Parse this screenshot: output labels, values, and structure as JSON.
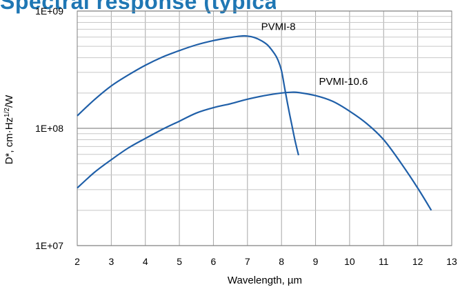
{
  "page_title": "Spectral response (typical)",
  "chart_data": {
    "type": "line",
    "xlabel": "Wavelength, µm",
    "ylabel": "D*, cm·Hz",
    "ylabel_sup": "1/2",
    "ylabel_tail": "/W",
    "xlim": [
      2,
      13
    ],
    "ylim": [
      10000000,
      1000000000
    ],
    "y_scale": "log",
    "grid": true,
    "x_ticks": [
      "2",
      "3",
      "4",
      "5",
      "6",
      "7",
      "8",
      "9",
      "10",
      "11",
      "12",
      "13"
    ],
    "y_ticks": [
      "1E+07",
      "1E+08",
      "1E+09"
    ],
    "series": [
      {
        "name": "PVMI-8",
        "color": "#1f5fa8",
        "label_at": [
          7.4,
          690000000
        ],
        "points": [
          [
            2.0,
            128000000
          ],
          [
            2.5,
            175000000
          ],
          [
            3.0,
            230000000
          ],
          [
            3.5,
            285000000
          ],
          [
            4.0,
            345000000
          ],
          [
            4.5,
            405000000
          ],
          [
            5.0,
            460000000
          ],
          [
            5.5,
            515000000
          ],
          [
            6.0,
            560000000
          ],
          [
            6.5,
            595000000
          ],
          [
            6.8,
            612000000
          ],
          [
            7.0,
            612000000
          ],
          [
            7.2,
            595000000
          ],
          [
            7.4,
            560000000
          ],
          [
            7.6,
            510000000
          ],
          [
            7.8,
            430000000
          ],
          [
            7.9,
            380000000
          ],
          [
            8.0,
            310000000
          ],
          [
            8.1,
            215000000
          ],
          [
            8.2,
            150000000
          ],
          [
            8.3,
            108000000
          ],
          [
            8.4,
            78000000
          ],
          [
            8.5,
            59000000
          ]
        ]
      },
      {
        "name": "PVMI-10.6",
        "color": "#1f5fa8",
        "label_at": [
          9.1,
          235000000
        ],
        "points": [
          [
            2.0,
            31000000
          ],
          [
            2.5,
            42000000
          ],
          [
            3.0,
            54000000
          ],
          [
            3.5,
            68000000
          ],
          [
            4.0,
            82000000
          ],
          [
            4.5,
            98000000
          ],
          [
            5.0,
            115000000
          ],
          [
            5.5,
            135000000
          ],
          [
            6.0,
            150000000
          ],
          [
            6.5,
            162000000
          ],
          [
            7.0,
            177000000
          ],
          [
            7.5,
            190000000
          ],
          [
            8.0,
            200000000
          ],
          [
            8.3,
            203000000
          ],
          [
            8.5,
            202000000
          ],
          [
            9.0,
            190000000
          ],
          [
            9.5,
            170000000
          ],
          [
            10.0,
            140000000
          ],
          [
            10.5,
            110000000
          ],
          [
            11.0,
            80000000
          ],
          [
            11.5,
            51000000
          ],
          [
            12.0,
            31000000
          ],
          [
            12.4,
            20000000
          ]
        ]
      }
    ]
  }
}
